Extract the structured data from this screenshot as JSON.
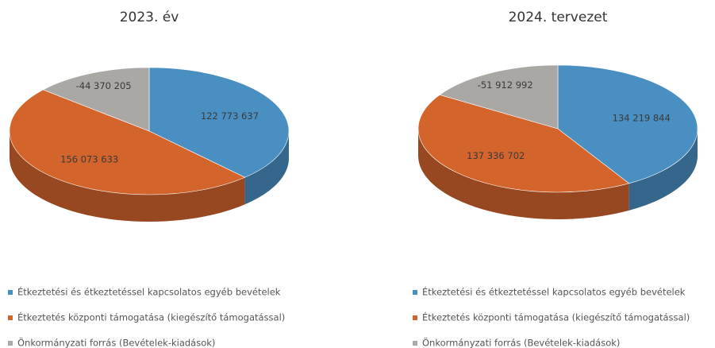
{
  "chart_data": [
    {
      "type": "pie",
      "title": "2023. év",
      "categories": [
        "Étkeztetési és étkeztetéssel kapcsolatos egyéb bevételek",
        "Étkeztetés központi támogatása (kiegészítő támogatással)",
        "Önkormányzati forrás (Bevételek-kiadások)"
      ],
      "values": [
        122773637,
        156073633,
        -44370205
      ],
      "value_labels": [
        "122 773 637",
        "156 073 633",
        "-44 370 205"
      ],
      "colors": [
        "#4a8fc2",
        "#d2642c",
        "#aaa8a4"
      ]
    },
    {
      "type": "pie",
      "title": "2024. tervezet",
      "categories": [
        "Étkeztetési és étkeztetéssel kapcsolatos egyéb bevételek",
        "Étkeztetés központi támogatása (kiegészítő támogatással)",
        "Önkormányzati forrás (Bevételek-kiadások)"
      ],
      "values": [
        134219844,
        137336702,
        -51912992
      ],
      "value_labels": [
        "134 219 844",
        "137 336 702",
        "-51 912 992"
      ],
      "colors": [
        "#4a8fc2",
        "#d2642c",
        "#aaa8a4"
      ]
    }
  ]
}
